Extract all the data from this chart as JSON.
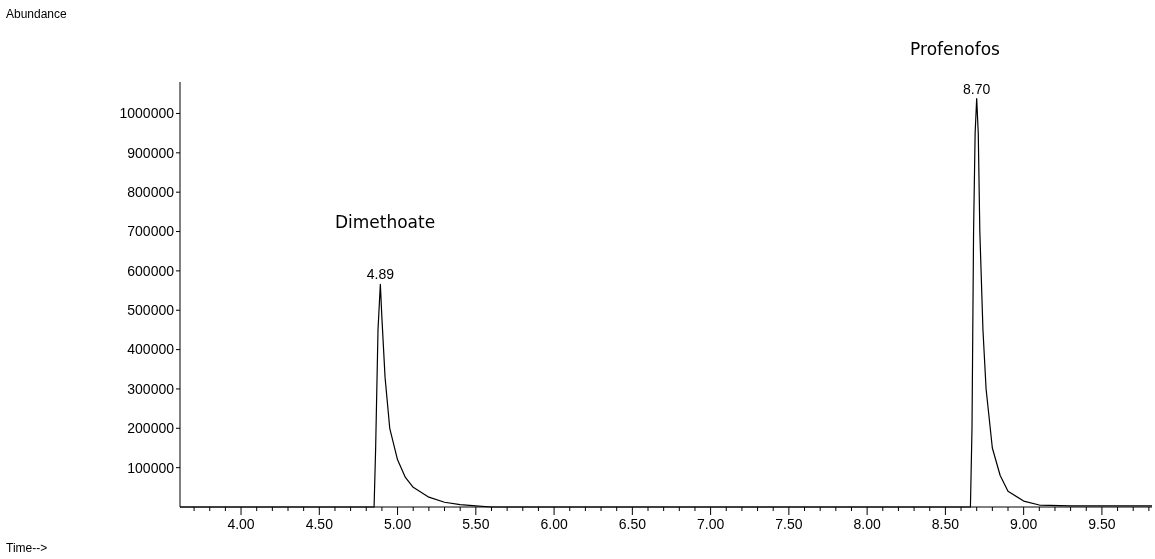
{
  "chart_data": {
    "type": "line",
    "xlim": [
      3.61,
      9.82
    ],
    "ylim": [
      0,
      1080000
    ],
    "xticks": [
      {
        "value": 3.7,
        "label": null
      },
      {
        "value": 3.8,
        "label": null
      },
      {
        "value": 3.9,
        "label": null
      },
      {
        "value": 4.0,
        "label": "4.00"
      },
      {
        "value": 4.1,
        "label": null
      },
      {
        "value": 4.2,
        "label": null
      },
      {
        "value": 4.3,
        "label": null
      },
      {
        "value": 4.4,
        "label": null
      },
      {
        "value": 4.5,
        "label": "4.50"
      },
      {
        "value": 4.6,
        "label": null
      },
      {
        "value": 4.7,
        "label": null
      },
      {
        "value": 4.8,
        "label": null
      },
      {
        "value": 4.9,
        "label": null
      },
      {
        "value": 5.0,
        "label": "5.00"
      },
      {
        "value": 5.1,
        "label": null
      },
      {
        "value": 5.2,
        "label": null
      },
      {
        "value": 5.3,
        "label": null
      },
      {
        "value": 5.4,
        "label": null
      },
      {
        "value": 5.5,
        "label": "5.50"
      },
      {
        "value": 5.6,
        "label": null
      },
      {
        "value": 5.7,
        "label": null
      },
      {
        "value": 5.8,
        "label": null
      },
      {
        "value": 5.9,
        "label": null
      },
      {
        "value": 6.0,
        "label": "6.00"
      },
      {
        "value": 6.1,
        "label": null
      },
      {
        "value": 6.2,
        "label": null
      },
      {
        "value": 6.3,
        "label": null
      },
      {
        "value": 6.4,
        "label": null
      },
      {
        "value": 6.5,
        "label": "6.50"
      },
      {
        "value": 6.6,
        "label": null
      },
      {
        "value": 6.7,
        "label": null
      },
      {
        "value": 6.8,
        "label": null
      },
      {
        "value": 6.9,
        "label": null
      },
      {
        "value": 7.0,
        "label": "7.00"
      },
      {
        "value": 7.1,
        "label": null
      },
      {
        "value": 7.2,
        "label": null
      },
      {
        "value": 7.3,
        "label": null
      },
      {
        "value": 7.4,
        "label": null
      },
      {
        "value": 7.5,
        "label": "7.50"
      },
      {
        "value": 7.6,
        "label": null
      },
      {
        "value": 7.7,
        "label": null
      },
      {
        "value": 7.8,
        "label": null
      },
      {
        "value": 7.9,
        "label": null
      },
      {
        "value": 8.0,
        "label": "8.00"
      },
      {
        "value": 8.1,
        "label": null
      },
      {
        "value": 8.2,
        "label": null
      },
      {
        "value": 8.3,
        "label": null
      },
      {
        "value": 8.4,
        "label": null
      },
      {
        "value": 8.5,
        "label": "8.50"
      },
      {
        "value": 8.6,
        "label": null
      },
      {
        "value": 8.7,
        "label": null
      },
      {
        "value": 8.8,
        "label": null
      },
      {
        "value": 8.9,
        "label": null
      },
      {
        "value": 9.0,
        "label": "9.00"
      },
      {
        "value": 9.1,
        "label": null
      },
      {
        "value": 9.2,
        "label": null
      },
      {
        "value": 9.3,
        "label": null
      },
      {
        "value": 9.4,
        "label": null
      },
      {
        "value": 9.5,
        "label": "9.50"
      },
      {
        "value": 9.6,
        "label": null
      },
      {
        "value": 9.7,
        "label": null
      },
      {
        "value": 9.8,
        "label": null
      }
    ],
    "yticks": [
      100000,
      200000,
      300000,
      400000,
      500000,
      600000,
      700000,
      800000,
      900000,
      1000000
    ],
    "series": [
      {
        "color": "#000000",
        "x": [
          3.61,
          4.85,
          4.86,
          4.875,
          4.89,
          4.9,
          4.92,
          4.95,
          5.0,
          5.05,
          5.1,
          5.2,
          5.3,
          5.4,
          5.5,
          5.6,
          8.66,
          8.67,
          8.68,
          8.69,
          8.7,
          8.71,
          8.72,
          8.74,
          8.76,
          8.8,
          8.85,
          8.9,
          9.0,
          9.1,
          9.3,
          9.82
        ],
        "values": [
          0,
          0,
          150000,
          450000,
          566000,
          480000,
          330000,
          200000,
          120000,
          75000,
          50000,
          25000,
          12000,
          6000,
          3000,
          0,
          0,
          200000,
          700000,
          950000,
          1038000,
          950000,
          700000,
          450000,
          300000,
          150000,
          80000,
          40000,
          15000,
          5000,
          3000,
          3000
        ]
      }
    ],
    "annotations": [
      {
        "text": "4.89",
        "x": 4.89,
        "y": 566000
      },
      {
        "text": "8.70",
        "x": 8.7,
        "y": 1038000
      },
      "Abundance",
      "Time-->",
      "Dimethoate",
      "Profenofos"
    ]
  }
}
